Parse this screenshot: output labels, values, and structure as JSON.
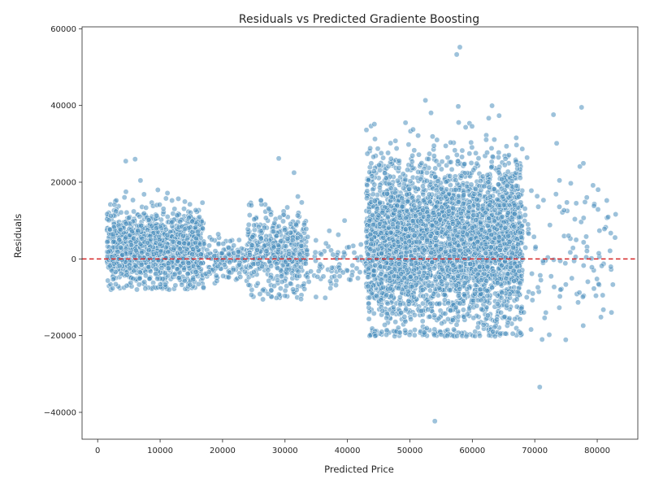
{
  "chart_data": {
    "type": "scatter",
    "title": "Residuals vs Predicted Gradiente Boosting",
    "xlabel": "Predicted Price",
    "ylabel": "Residuals",
    "xlim": [
      -2500,
      86500
    ],
    "ylim": [
      -47000,
      60500
    ],
    "xticks": [
      0,
      10000,
      20000,
      30000,
      40000,
      50000,
      60000,
      70000,
      80000
    ],
    "yticks": [
      -40000,
      -20000,
      0,
      20000,
      40000,
      60000
    ],
    "reference_line": {
      "y": 0,
      "style": "dashed",
      "color": "#d62728"
    },
    "point_color": "#4c8fbd",
    "grid": false,
    "clusters": [
      {
        "x_range": [
          1500,
          17000
        ],
        "center_y": 3000,
        "spread": 5000,
        "approx_points": 1400
      },
      {
        "x_range": [
          17000,
          24000
        ],
        "center_y": 0,
        "spread": 3000,
        "approx_points": 150
      },
      {
        "x_range": [
          24000,
          33500
        ],
        "center_y": 1500,
        "spread": 5500,
        "approx_points": 450
      },
      {
        "x_range": [
          33500,
          43000
        ],
        "center_y": -1500,
        "spread": 4000,
        "approx_points": 80
      },
      {
        "x_range": [
          43000,
          68000
        ],
        "center_y": 4000,
        "spread": 11000,
        "approx_points": 3800
      },
      {
        "x_range": [
          68000,
          83000
        ],
        "center_y": 3000,
        "spread": 11000,
        "approx_points": 120
      }
    ],
    "notable_points": [
      {
        "x": 58000,
        "y": 55200
      },
      {
        "x": 57500,
        "y": 53300
      },
      {
        "x": 54000,
        "y": -42300
      },
      {
        "x": 70800,
        "y": -33400
      },
      {
        "x": 77500,
        "y": 39500
      },
      {
        "x": 73000,
        "y": 37600
      },
      {
        "x": 82500,
        "y": -6700
      },
      {
        "x": 4500,
        "y": 25500
      },
      {
        "x": 6000,
        "y": 26000
      },
      {
        "x": 29000,
        "y": 26200
      }
    ]
  }
}
